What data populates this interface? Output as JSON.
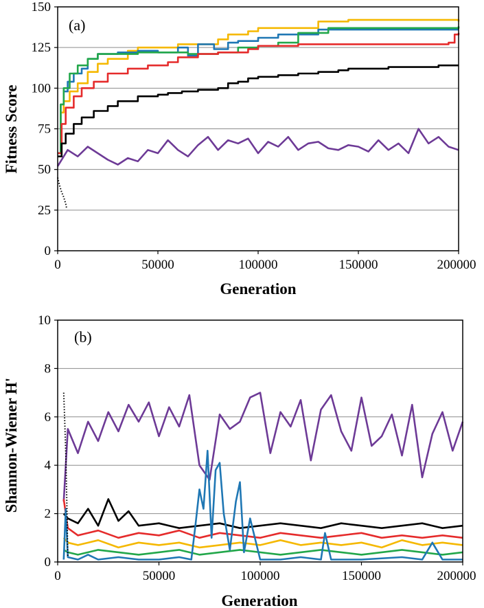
{
  "chart_data": [
    {
      "type": "line",
      "panel_label": "(a)",
      "xlabel": "Generation",
      "ylabel": "Fitness Score",
      "xlim": [
        0,
        200000
      ],
      "ylim": [
        0,
        150
      ],
      "xticks": [
        0,
        50000,
        100000,
        150000,
        200000
      ],
      "yticks": [
        0,
        25,
        50,
        75,
        100,
        125,
        150
      ],
      "xtick_labels": [
        "0",
        "50000",
        "100000",
        "150000",
        "200000"
      ],
      "ytick_labels": [
        "0",
        "25",
        "50",
        "75",
        "100",
        "125",
        "150"
      ],
      "grid": true,
      "series": [
        {
          "color": "#f5b800",
          "style": "step",
          "x": [
            0,
            1500,
            3000,
            6000,
            10000,
            15000,
            20000,
            25000,
            35000,
            40000,
            60000,
            80000,
            85000,
            95000,
            100000,
            130000,
            145000,
            200000
          ],
          "y": [
            60,
            85,
            92,
            98,
            103,
            110,
            115,
            118,
            123,
            125,
            127,
            130,
            133,
            135,
            137,
            141,
            142,
            141
          ]
        },
        {
          "color": "#1f77b4",
          "style": "step",
          "x": [
            0,
            1500,
            3000,
            5000,
            8000,
            12000,
            15000,
            20000,
            30000,
            40000,
            50000,
            60000,
            65000,
            70000,
            78000,
            85000,
            90000,
            100000,
            110000,
            130000,
            200000
          ],
          "y": [
            60,
            90,
            98,
            104,
            109,
            112,
            118,
            121,
            122,
            123,
            122,
            125,
            120,
            127,
            124,
            128,
            129,
            131,
            133,
            136,
            136
          ]
        },
        {
          "color": "#22a74a",
          "style": "step",
          "x": [
            0,
            1500,
            3000,
            6000,
            10000,
            15000,
            20000,
            40000,
            60000,
            65000,
            80000,
            90000,
            100000,
            110000,
            120000,
            135000,
            200000
          ],
          "y": [
            60,
            90,
            100,
            109,
            114,
            118,
            121,
            122,
            122,
            121,
            122,
            125,
            126,
            128,
            134,
            137,
            138
          ]
        },
        {
          "color": "#e52b2b",
          "style": "step",
          "x": [
            0,
            2000,
            4000,
            8000,
            12000,
            18000,
            25000,
            35000,
            45000,
            55000,
            60000,
            70000,
            80000,
            95000,
            100000,
            120000,
            195000,
            198000,
            200000
          ],
          "y": [
            60,
            78,
            88,
            95,
            100,
            104,
            109,
            112,
            114,
            116,
            119,
            121,
            122,
            124,
            126,
            127,
            128,
            133,
            134
          ]
        },
        {
          "color": "#000000",
          "style": "step",
          "x": [
            0,
            2000,
            4000,
            8000,
            12000,
            18000,
            25000,
            30000,
            40000,
            50000,
            55000,
            62000,
            70000,
            80000,
            85000,
            90000,
            95000,
            100000,
            110000,
            120000,
            130000,
            140000,
            145000,
            155000,
            165000,
            180000,
            190000,
            200000
          ],
          "y": [
            58,
            66,
            72,
            78,
            82,
            86,
            89,
            92,
            95,
            96,
            97,
            98,
            99,
            100,
            103,
            104,
            106,
            107,
            108,
            109,
            110,
            111,
            112,
            112,
            113,
            113,
            114,
            114
          ]
        },
        {
          "color": "#6d3a96",
          "style": "line",
          "x": [
            0,
            5000,
            10000,
            15000,
            20000,
            25000,
            30000,
            35000,
            40000,
            45000,
            50000,
            55000,
            60000,
            65000,
            70000,
            75000,
            80000,
            85000,
            90000,
            95000,
            100000,
            105000,
            110000,
            115000,
            120000,
            125000,
            130000,
            135000,
            140000,
            145000,
            150000,
            155000,
            160000,
            165000,
            170000,
            175000,
            180000,
            185000,
            190000,
            195000,
            200000
          ],
          "y": [
            52,
            62,
            58,
            64,
            60,
            56,
            53,
            57,
            55,
            62,
            60,
            68,
            62,
            58,
            65,
            70,
            62,
            68,
            66,
            69,
            60,
            67,
            64,
            70,
            62,
            66,
            67,
            63,
            62,
            65,
            64,
            61,
            68,
            62,
            66,
            60,
            75,
            66,
            70,
            64,
            62
          ]
        },
        {
          "color": "#000000",
          "style": "dotted",
          "x": [
            0,
            1000,
            2000,
            3000,
            3500,
            4000,
            4500
          ],
          "y": [
            45,
            40,
            36,
            33,
            31,
            29,
            26
          ]
        }
      ]
    },
    {
      "type": "line",
      "panel_label": "(b)",
      "xlabel": "Generation",
      "ylabel": "Shannon-Wiener H'",
      "xlim": [
        0,
        200000
      ],
      "ylim": [
        0,
        10
      ],
      "xticks": [
        0,
        50000,
        100000,
        150000,
        200000
      ],
      "yticks": [
        0,
        2,
        4,
        6,
        8,
        10
      ],
      "xtick_labels": [
        "0",
        "50000",
        "100000",
        "150000",
        "200000"
      ],
      "ytick_labels": [
        "0",
        "2",
        "4",
        "6",
        "8",
        "10"
      ],
      "grid": true,
      "series": [
        {
          "color": "#6d3a96",
          "style": "line",
          "x": [
            3000,
            5000,
            10000,
            15000,
            20000,
            25000,
            30000,
            35000,
            40000,
            45000,
            50000,
            55000,
            60000,
            65000,
            70000,
            75000,
            80000,
            85000,
            90000,
            95000,
            100000,
            105000,
            110000,
            115000,
            120000,
            125000,
            130000,
            135000,
            140000,
            145000,
            150000,
            155000,
            160000,
            165000,
            170000,
            175000,
            180000,
            185000,
            190000,
            195000,
            200000
          ],
          "y": [
            2.5,
            5.5,
            4.5,
            5.8,
            5.0,
            6.2,
            5.4,
            6.5,
            5.8,
            6.6,
            5.2,
            6.4,
            5.6,
            6.9,
            4.0,
            3.4,
            6.1,
            5.5,
            5.8,
            6.8,
            7.0,
            4.5,
            6.2,
            5.6,
            6.7,
            4.2,
            6.3,
            6.9,
            5.4,
            4.6,
            6.8,
            4.8,
            5.2,
            6.1,
            4.4,
            6.5,
            3.5,
            5.3,
            6.2,
            4.6,
            5.8
          ]
        },
        {
          "color": "#000000",
          "style": "line",
          "x": [
            3000,
            5000,
            10000,
            15000,
            20000,
            25000,
            30000,
            35000,
            40000,
            50000,
            60000,
            70000,
            80000,
            90000,
            100000,
            110000,
            120000,
            130000,
            140000,
            150000,
            160000,
            170000,
            180000,
            190000,
            200000
          ],
          "y": [
            2.0,
            1.8,
            1.6,
            2.2,
            1.5,
            2.6,
            1.7,
            2.1,
            1.5,
            1.6,
            1.4,
            1.5,
            1.6,
            1.4,
            1.5,
            1.6,
            1.5,
            1.4,
            1.6,
            1.5,
            1.4,
            1.5,
            1.6,
            1.4,
            1.5
          ]
        },
        {
          "color": "#e52b2b",
          "style": "line",
          "x": [
            3000,
            5000,
            10000,
            20000,
            30000,
            40000,
            50000,
            60000,
            70000,
            80000,
            90000,
            100000,
            110000,
            120000,
            130000,
            140000,
            150000,
            160000,
            170000,
            180000,
            190000,
            200000
          ],
          "y": [
            2.6,
            1.4,
            1.1,
            1.3,
            1.0,
            1.2,
            1.1,
            1.3,
            1.0,
            1.2,
            1.1,
            1.0,
            1.2,
            1.1,
            1.0,
            1.1,
            1.2,
            1.0,
            1.1,
            1.0,
            1.1,
            1.0
          ]
        },
        {
          "color": "#f5b800",
          "style": "line",
          "x": [
            3000,
            5000,
            10000,
            20000,
            30000,
            40000,
            50000,
            60000,
            70000,
            80000,
            90000,
            100000,
            110000,
            120000,
            130000,
            140000,
            150000,
            160000,
            170000,
            180000,
            190000,
            200000
          ],
          "y": [
            1.0,
            0.8,
            0.7,
            0.9,
            0.6,
            0.8,
            0.7,
            0.8,
            0.6,
            0.7,
            0.8,
            0.7,
            0.9,
            0.7,
            0.8,
            0.7,
            0.8,
            0.6,
            0.9,
            0.7,
            0.8,
            0.7
          ]
        },
        {
          "color": "#22a74a",
          "style": "line",
          "x": [
            3000,
            5000,
            10000,
            20000,
            30000,
            40000,
            50000,
            60000,
            70000,
            80000,
            90000,
            100000,
            110000,
            120000,
            130000,
            140000,
            150000,
            160000,
            170000,
            180000,
            190000,
            200000
          ],
          "y": [
            0.5,
            0.4,
            0.3,
            0.5,
            0.4,
            0.3,
            0.4,
            0.5,
            0.3,
            0.4,
            0.5,
            0.4,
            0.3,
            0.4,
            0.5,
            0.4,
            0.3,
            0.4,
            0.5,
            0.4,
            0.3,
            0.4
          ]
        },
        {
          "color": "#1f77b4",
          "style": "line",
          "x": [
            3000,
            4000,
            5000,
            10000,
            15000,
            20000,
            30000,
            40000,
            50000,
            60000,
            66000,
            68000,
            70000,
            72000,
            74000,
            76000,
            78000,
            80000,
            82000,
            85000,
            88000,
            90000,
            92000,
            95000,
            100000,
            110000,
            120000,
            130000,
            132000,
            135000,
            150000,
            170000,
            180000,
            185000,
            190000,
            200000
          ],
          "y": [
            0.1,
            2.2,
            0.2,
            0.1,
            0.3,
            0.1,
            0.2,
            0.1,
            0.1,
            0.2,
            0.1,
            1.5,
            3.0,
            2.2,
            4.6,
            1.0,
            3.8,
            4.1,
            2.0,
            0.5,
            2.5,
            3.3,
            0.4,
            1.8,
            0.1,
            0.1,
            0.2,
            0.1,
            1.2,
            0.1,
            0.1,
            0.2,
            0.1,
            0.8,
            0.1,
            0.1
          ]
        },
        {
          "color": "#000000",
          "style": "dotted",
          "x": [
            3000,
            3500,
            4000,
            4500,
            5000
          ],
          "y": [
            7.0,
            5.8,
            4.5,
            2.5,
            0.2
          ]
        }
      ]
    }
  ]
}
